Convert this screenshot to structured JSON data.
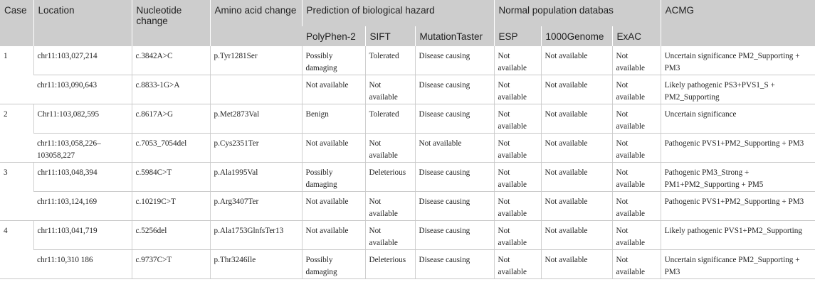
{
  "header": {
    "case": "Case",
    "location": "Location",
    "nucleotide": "Nucleotide change",
    "amino": "Amino acid change",
    "prediction": "Prediction of biological hazard",
    "polyphen": "PolyPhen-2",
    "sift": "SIFT",
    "mutationtaster": "MutationTaster",
    "normal": "Normal population databas",
    "esp": "ESP",
    "genome1000": "1000Genome",
    "exac": "ExAC",
    "acmg": "ACMG"
  },
  "rows": [
    {
      "case": "1",
      "location": "chr11:103,027,214",
      "nucleotide": "c.3842A>C",
      "amino": "p.Tyr1281Ser",
      "polyphen": "Possibly damaging",
      "sift": "Tolerated",
      "mt": "Disease causing",
      "esp": "Not available",
      "g1000": "Not available",
      "exac": "Not available",
      "acmg": "Uncertain significance PM2_Supporting + PM3"
    },
    {
      "case": "",
      "location": "chr11:103,090,643",
      "nucleotide": "c.8833-1G>A",
      "amino": "",
      "polyphen": "Not available",
      "sift": "Not available",
      "mt": "Disease causing",
      "esp": "Not available",
      "g1000": "Not available",
      "exac": "Not available",
      "acmg": "Likely pathogenic PS3+PVS1_S + PM2_Supporting"
    },
    {
      "case": "2",
      "location": "Chr11:103,082,595",
      "nucleotide": "c.8617A>G",
      "amino": "p.Met2873Val",
      "polyphen": "Benign",
      "sift": "Tolerated",
      "mt": "Disease causing",
      "esp": "Not available",
      "g1000": "Not available",
      "exac": "Not available",
      "acmg": "Uncertain significance"
    },
    {
      "case": "",
      "location": "chr11:103,058,226–103058,227",
      "nucleotide": "c.7053_7054del",
      "amino": "p.Cys2351Ter",
      "polyphen": "Not available",
      "sift": "Not available",
      "mt": "Not available",
      "esp": "Not available",
      "g1000": "Not available",
      "exac": "Not available",
      "acmg": "Pathogenic PVS1+PM2_Supporting + PM3"
    },
    {
      "case": "3",
      "location": "chr11:103,048,394",
      "nucleotide": "c.5984C>T",
      "amino": "p.Ala1995Val",
      "polyphen": "Possibly damaging",
      "sift": "Deleterious",
      "mt": "Disease causing",
      "esp": "Not available",
      "g1000": "Not available",
      "exac": "Not available",
      "acmg": "Pathogenic PM3_Strong + PM1+PM2_Supporting + PM5"
    },
    {
      "case": "",
      "location": "chr11:103,124,169",
      "nucleotide": "c.10219C>T",
      "amino": "p.Arg3407Ter",
      "polyphen": "Not available",
      "sift": "Not available",
      "mt": "Disease causing",
      "esp": "Not available",
      "g1000": "Not available",
      "exac": "Not available",
      "acmg": "Pathogenic PVS1+PM2_Supporting + PM3"
    },
    {
      "case": "4",
      "location": "chr11:103,041,719",
      "nucleotide": "c.5256del",
      "amino": "p.Ala1753GlnfsTer13",
      "polyphen": "Not available",
      "sift": "Not available",
      "mt": "Disease causing",
      "esp": "Not available",
      "g1000": "Not available",
      "exac": "Not available",
      "acmg": "Likely pathogenic PVS1+PM2_Supporting"
    },
    {
      "case": "",
      "location": "chr11:10,310 186",
      "nucleotide": "c.9737C>T",
      "amino": "p.Thr3246Ile",
      "polyphen": "Possibly damaging",
      "sift": "Deleterious",
      "mt": "Disease causing",
      "esp": "Not available",
      "g1000": "Not available",
      "exac": "Not available",
      "acmg": "Uncertain significance PM2_Supporting + PM3"
    }
  ]
}
